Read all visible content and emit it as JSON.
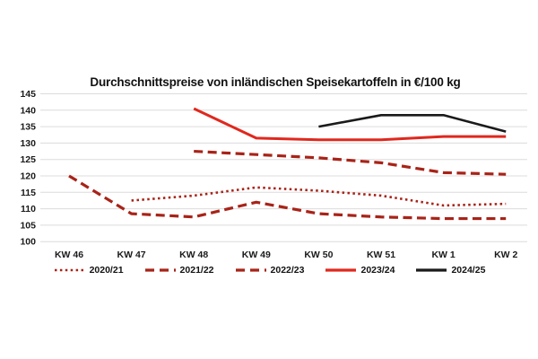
{
  "title": "Durchschnittspreise von inländischen Speisekartoffeln in €/100 kg",
  "colors": {
    "bright_red": "#e0281e",
    "dark_red": "#a82318",
    "black": "#1a1a1a",
    "grid": "#dcdcdc",
    "text": "#1a1a1a"
  },
  "chart_data": {
    "type": "line",
    "title": "Durchschnittspreise von inländischen Speisekartoffeln in €/100 kg",
    "xlabel": "",
    "ylabel": "€/100 kg",
    "categories": [
      "KW 46",
      "KW 47",
      "KW 48",
      "KW 49",
      "KW 50",
      "KW 51",
      "KW 1",
      "KW 2"
    ],
    "ylim": [
      100,
      145
    ],
    "ytick_step": 5,
    "ytick_labels": [
      "100",
      "105",
      "110",
      "115",
      "120",
      "125",
      "130",
      "135",
      "140",
      "145"
    ],
    "grid": "horizontal",
    "legend_position": "bottom",
    "series": [
      {
        "name": "2020/21",
        "style": "dotted",
        "color": "#a82318",
        "values": [
          null,
          112.5,
          114,
          116.5,
          115.5,
          114,
          111,
          111.5
        ]
      },
      {
        "name": "2021/22",
        "style": "dashed",
        "color": "#a82318",
        "values": [
          120,
          108.5,
          107.5,
          112,
          108.5,
          107.5,
          107,
          107
        ]
      },
      {
        "name": "2022/23",
        "style": "dashed",
        "color": "#a82318",
        "values": [
          null,
          null,
          127.5,
          126.5,
          125.5,
          124,
          121,
          120.5
        ]
      },
      {
        "name": "2023/24",
        "style": "solid",
        "color": "#e0281e",
        "values": [
          null,
          null,
          140.5,
          131.5,
          131,
          131,
          132,
          132
        ]
      },
      {
        "name": "2024/25",
        "style": "solid",
        "color": "#1a1a1a",
        "values": [
          null,
          null,
          null,
          null,
          135,
          138.5,
          138.5,
          133.5
        ]
      }
    ]
  }
}
